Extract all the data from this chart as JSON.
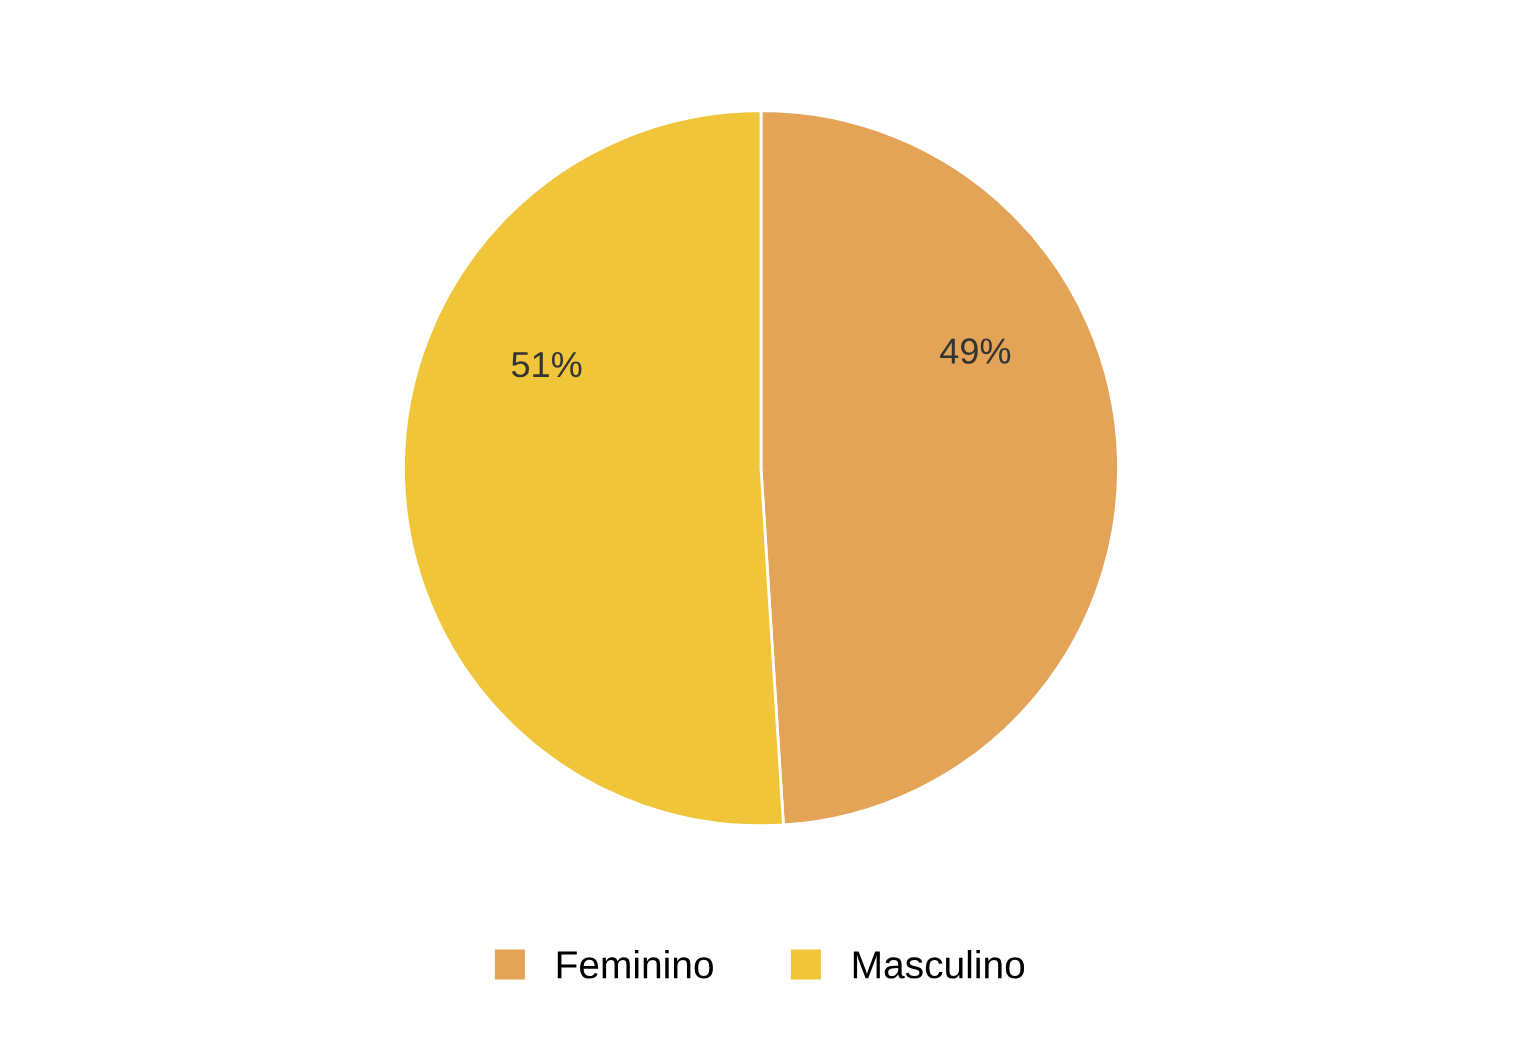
{
  "chart_data": {
    "type": "pie",
    "categories": [
      "Feminino",
      "Masculino"
    ],
    "values": [
      49,
      51
    ],
    "colors": [
      "#e3a458",
      "#f0c53a"
    ],
    "value_labels": [
      "49%",
      "51%"
    ],
    "legend": "bottom"
  }
}
